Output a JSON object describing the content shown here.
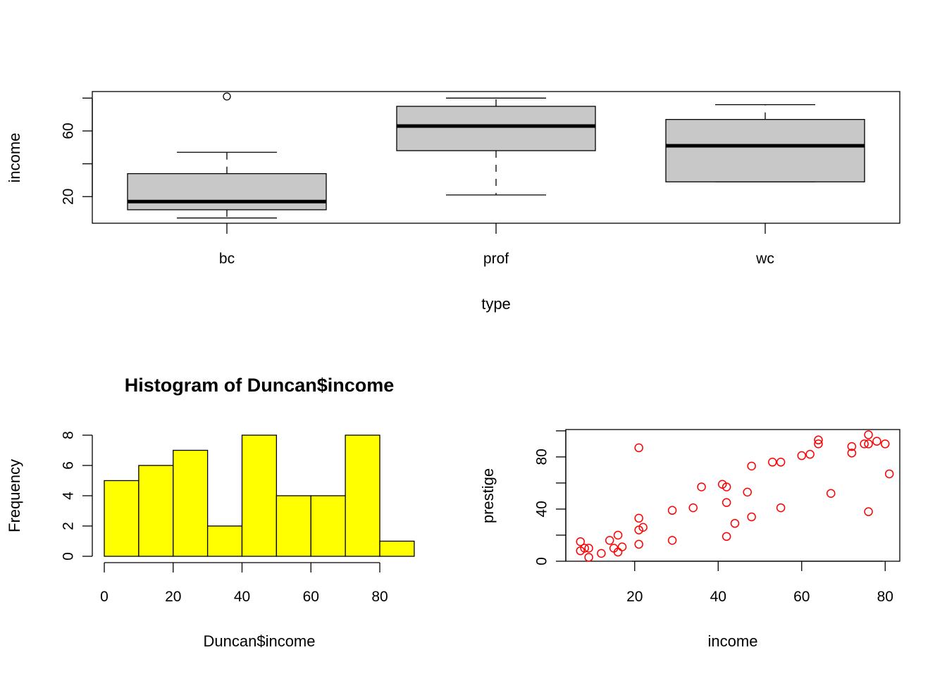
{
  "chart_data": [
    {
      "type": "boxplot",
      "title": "",
      "xlabel": "type",
      "ylabel": "income",
      "ylim": [
        3.8,
        84
      ],
      "yticks": [
        20,
        40,
        60,
        80
      ],
      "ytick_labels": [
        "20",
        "",
        "60",
        ""
      ],
      "categories": [
        "bc",
        "prof",
        "wc"
      ],
      "box_fill": "#c8c8c8",
      "boxes": [
        {
          "name": "bc",
          "whisker_low": 7,
          "q1": 12,
          "median": 17,
          "q3": 34,
          "whisker_high": 47,
          "outliers": [
            81
          ]
        },
        {
          "name": "prof",
          "whisker_low": 21,
          "q1": 48,
          "median": 63,
          "q3": 75,
          "whisker_high": 80,
          "outliers": []
        },
        {
          "name": "wc",
          "whisker_low": 29,
          "q1": 29,
          "median": 51,
          "q3": 67,
          "whisker_high": 76,
          "outliers": []
        }
      ]
    },
    {
      "type": "histogram",
      "title": "Histogram of Duncan$income",
      "xlabel": "Duncan$income",
      "ylabel": "Frequency",
      "xlim": [
        0,
        90
      ],
      "ylim": [
        0,
        8
      ],
      "xticks": [
        0,
        20,
        40,
        60,
        80
      ],
      "yticks": [
        0,
        2,
        4,
        6,
        8
      ],
      "bin_width": 10,
      "bins": [
        0,
        10,
        20,
        30,
        40,
        50,
        60,
        70,
        80
      ],
      "values": [
        5,
        6,
        7,
        2,
        8,
        4,
        4,
        8,
        1
      ],
      "bar_color": "#ffff00"
    },
    {
      "type": "scatter",
      "title": "",
      "xlabel": "income",
      "ylabel": "prestige",
      "xlim": [
        3.5,
        83.5
      ],
      "ylim": [
        0,
        101
      ],
      "xticks": [
        20,
        40,
        60,
        80
      ],
      "yticks": [
        0,
        20,
        40,
        60,
        80,
        100
      ],
      "ytick_labels": [
        "0",
        "",
        "40",
        "",
        "80",
        ""
      ],
      "point_color": "#ff0000",
      "points": [
        [
          7,
          15
        ],
        [
          7,
          8
        ],
        [
          8,
          10
        ],
        [
          9,
          10
        ],
        [
          9,
          3
        ],
        [
          12,
          6
        ],
        [
          14,
          16
        ],
        [
          15,
          10
        ],
        [
          16,
          20
        ],
        [
          16,
          7
        ],
        [
          17,
          11
        ],
        [
          21,
          87
        ],
        [
          21,
          33
        ],
        [
          21,
          24
        ],
        [
          21,
          13
        ],
        [
          22,
          26
        ],
        [
          29,
          39
        ],
        [
          29,
          16
        ],
        [
          34,
          41
        ],
        [
          36,
          57
        ],
        [
          41,
          59
        ],
        [
          42,
          57
        ],
        [
          42,
          45
        ],
        [
          42,
          19
        ],
        [
          44,
          29
        ],
        [
          47,
          53
        ],
        [
          48,
          73
        ],
        [
          48,
          34
        ],
        [
          53,
          76
        ],
        [
          55,
          76
        ],
        [
          55,
          41
        ],
        [
          60,
          81
        ],
        [
          62,
          82
        ],
        [
          64,
          93
        ],
        [
          64,
          90
        ],
        [
          67,
          52
        ],
        [
          72,
          88
        ],
        [
          72,
          83
        ],
        [
          75,
          90
        ],
        [
          76,
          97
        ],
        [
          76,
          90
        ],
        [
          76,
          38
        ],
        [
          78,
          92
        ],
        [
          80,
          90
        ],
        [
          81,
          67
        ]
      ]
    }
  ]
}
